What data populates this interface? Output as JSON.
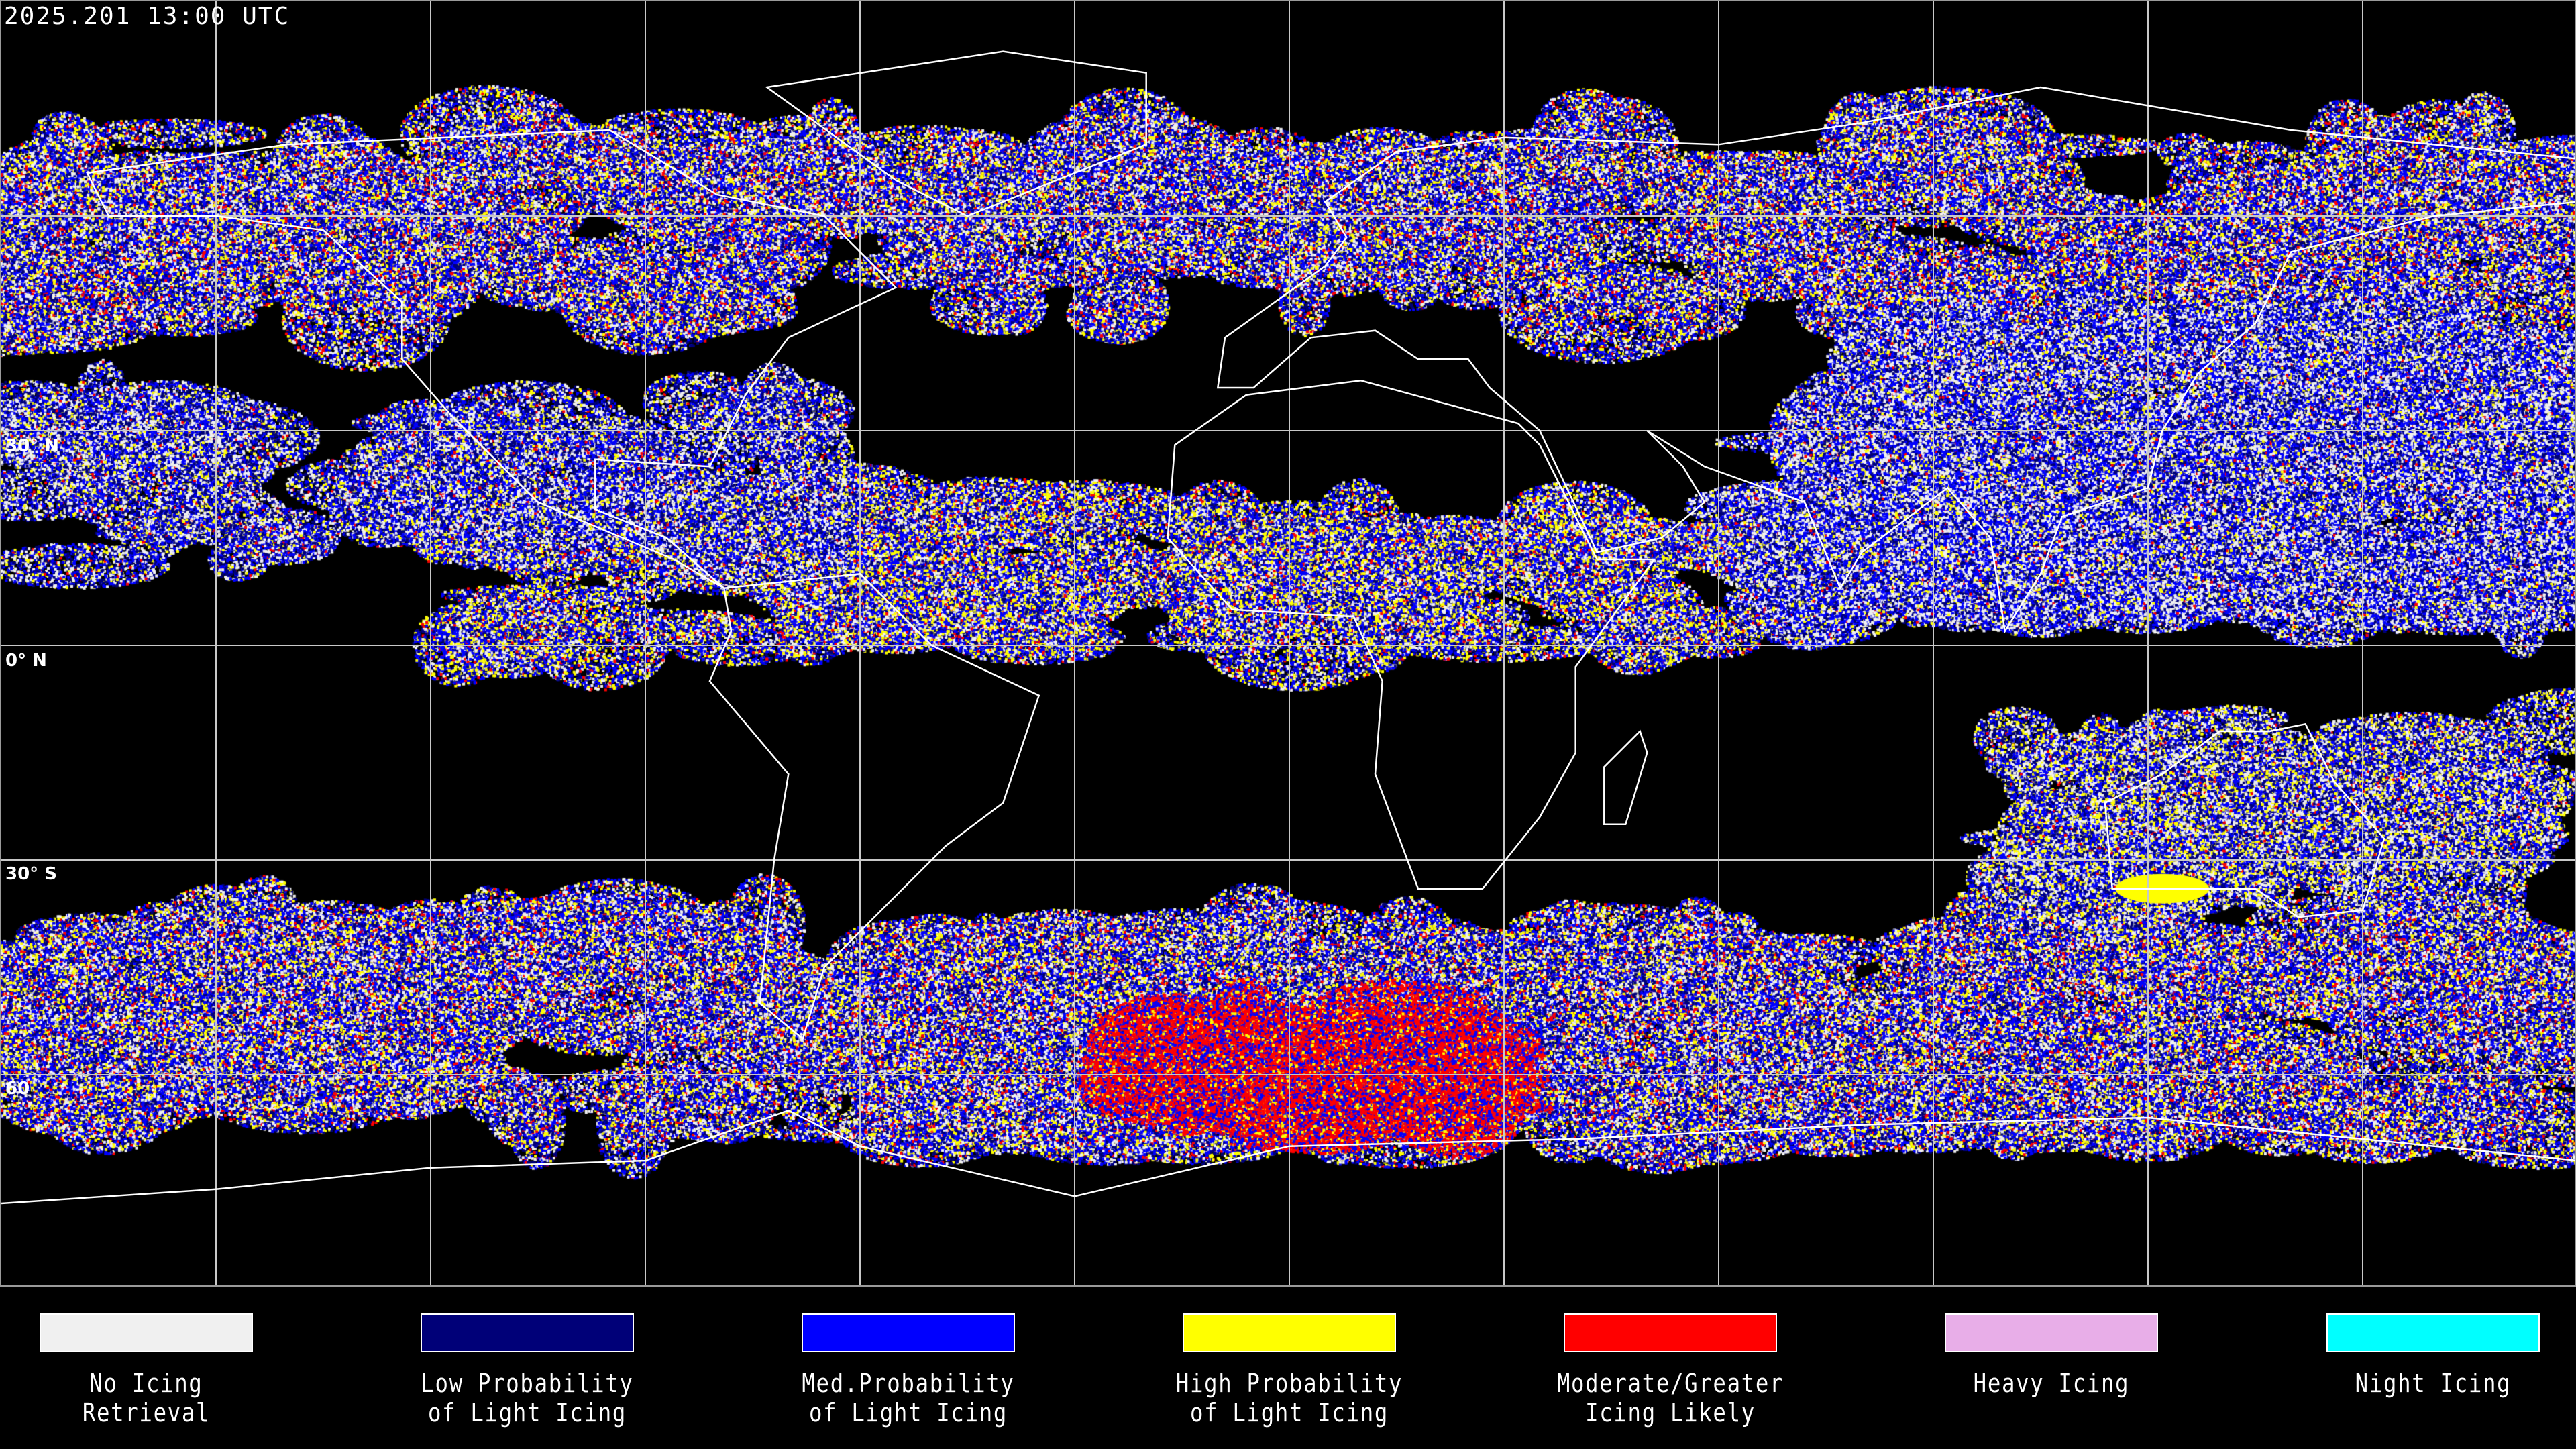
{
  "timestamp": "2025.201 13:00 UTC",
  "latitude_labels": [
    "30° N",
    "0° N",
    "30° S",
    "60"
  ],
  "legend": [
    {
      "label": "No Icing\nRetrieval",
      "color": "#f0f0f0"
    },
    {
      "label": "Low Probability\nof Light Icing",
      "color": "#000078"
    },
    {
      "label": "Med.Probability\nof Light Icing",
      "color": "#0000ff"
    },
    {
      "label": "High Probability\nof Light Icing",
      "color": "#ffff00"
    },
    {
      "label": "Moderate/Greater\nIcing Likely",
      "color": "#ff0000"
    },
    {
      "label": "Heavy Icing",
      "color": "#e8aee8"
    },
    {
      "label": "Night Icing",
      "color": "#00ffff"
    }
  ],
  "colors": {
    "background": "#000000",
    "gridlines": "#c8c8c8",
    "coastlines": "#ffffff"
  }
}
